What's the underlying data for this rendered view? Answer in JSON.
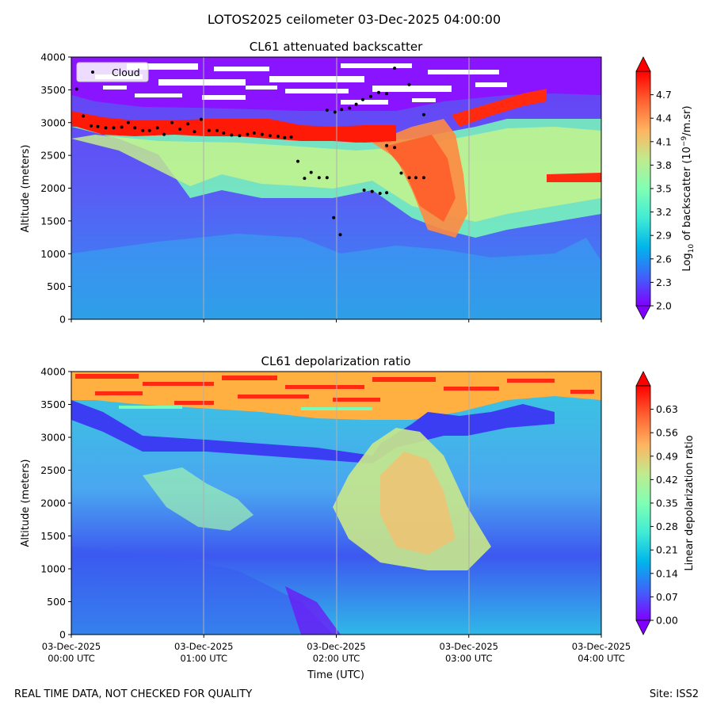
{
  "figure_title": "LOTOS2025 ceilometer 03-Dec-2025 04:00:00",
  "footer_left": "REAL TIME DATA, NOT CHECKED FOR QUALITY",
  "footer_right": "Site: ISS2",
  "chart_data": [
    {
      "type": "heatmap",
      "title": "CL61 attenuated backscatter",
      "xlabel": "",
      "ylabel": "Altitude (meters)",
      "ylim": [
        0,
        4000
      ],
      "y_ticks": [
        "0",
        "500",
        "1000",
        "1500",
        "2000",
        "2500",
        "3000",
        "3500",
        "4000"
      ],
      "x_ticks": [
        "",
        "",
        "",
        "",
        ""
      ],
      "colorbar": {
        "label": "Log10 of backscatter (10^-9/m.sr)",
        "range": [
          2.0,
          5.0
        ],
        "ticks": [
          "2.0",
          "2.3",
          "2.6",
          "2.9",
          "3.2",
          "3.5",
          "3.8",
          "4.1",
          "4.4",
          "4.7"
        ],
        "colormap": "rainbow",
        "extend": "both"
      },
      "legend": {
        "entries": [
          "Cloud"
        ],
        "placement": "upper-left"
      },
      "cloud_base_points": [
        {
          "t": 0.04,
          "alt": 3510
        },
        {
          "t": 0.09,
          "alt": 3100
        },
        {
          "t": 0.15,
          "alt": 2950
        },
        {
          "t": 0.2,
          "alt": 2940
        },
        {
          "t": 0.26,
          "alt": 2920
        },
        {
          "t": 0.32,
          "alt": 2920
        },
        {
          "t": 0.38,
          "alt": 2930
        },
        {
          "t": 0.43,
          "alt": 3000
        },
        {
          "t": 0.48,
          "alt": 2920
        },
        {
          "t": 0.54,
          "alt": 2880
        },
        {
          "t": 0.59,
          "alt": 2880
        },
        {
          "t": 0.65,
          "alt": 2920
        },
        {
          "t": 0.7,
          "alt": 2820
        },
        {
          "t": 0.76,
          "alt": 3000
        },
        {
          "t": 0.82,
          "alt": 2900
        },
        {
          "t": 0.88,
          "alt": 2980
        },
        {
          "t": 0.93,
          "alt": 2860
        },
        {
          "t": 0.98,
          "alt": 3050
        },
        {
          "t": 1.04,
          "alt": 2880
        },
        {
          "t": 1.1,
          "alt": 2880
        },
        {
          "t": 1.15,
          "alt": 2840
        },
        {
          "t": 1.21,
          "alt": 2810
        },
        {
          "t": 1.27,
          "alt": 2800
        },
        {
          "t": 1.33,
          "alt": 2820
        },
        {
          "t": 1.38,
          "alt": 2840
        },
        {
          "t": 1.44,
          "alt": 2820
        },
        {
          "t": 1.5,
          "alt": 2800
        },
        {
          "t": 1.56,
          "alt": 2790
        },
        {
          "t": 1.61,
          "alt": 2770
        },
        {
          "t": 1.66,
          "alt": 2780
        },
        {
          "t": 1.71,
          "alt": 2410
        },
        {
          "t": 1.76,
          "alt": 2150
        },
        {
          "t": 1.81,
          "alt": 2240
        },
        {
          "t": 1.87,
          "alt": 2160
        },
        {
          "t": 1.93,
          "alt": 2160
        },
        {
          "t": 1.93,
          "alt": 3190
        },
        {
          "t": 1.98,
          "alt": 1550
        },
        {
          "t": 1.99,
          "alt": 3160
        },
        {
          "t": 2.03,
          "alt": 1290
        },
        {
          "t": 2.04,
          "alt": 3200
        },
        {
          "t": 2.1,
          "alt": 3220
        },
        {
          "t": 2.15,
          "alt": 3280
        },
        {
          "t": 2.2,
          "alt": 3350
        },
        {
          "t": 2.21,
          "alt": 1970
        },
        {
          "t": 2.26,
          "alt": 3400
        },
        {
          "t": 2.27,
          "alt": 1950
        },
        {
          "t": 2.32,
          "alt": 3460
        },
        {
          "t": 2.33,
          "alt": 1920
        },
        {
          "t": 2.38,
          "alt": 3440
        },
        {
          "t": 2.38,
          "alt": 2650
        },
        {
          "t": 2.38,
          "alt": 1930
        },
        {
          "t": 2.44,
          "alt": 3830
        },
        {
          "t": 2.44,
          "alt": 2620
        },
        {
          "t": 2.49,
          "alt": 2230
        },
        {
          "t": 2.55,
          "alt": 3580
        },
        {
          "t": 2.55,
          "alt": 2160
        },
        {
          "t": 2.6,
          "alt": 2160
        },
        {
          "t": 2.66,
          "alt": 3120
        },
        {
          "t": 2.66,
          "alt": 2160
        }
      ]
    },
    {
      "type": "heatmap",
      "title": "CL61 depolarization ratio",
      "xlabel": "Time (UTC)",
      "ylabel": "Altitude (meters)",
      "ylim": [
        0,
        4000
      ],
      "y_ticks": [
        "0",
        "500",
        "1000",
        "1500",
        "2000",
        "2500",
        "3000",
        "3500",
        "4000"
      ],
      "x_ticks": [
        {
          "date": "03-Dec-2025",
          "time": "00:00 UTC"
        },
        {
          "date": "03-Dec-2025",
          "time": "01:00 UTC"
        },
        {
          "date": "03-Dec-2025",
          "time": "02:00 UTC"
        },
        {
          "date": "03-Dec-2025",
          "time": "03:00 UTC"
        },
        {
          "date": "03-Dec-2025",
          "time": "04:00 UTC"
        }
      ],
      "colorbar": {
        "label": "Linear depolarization ratio",
        "range": [
          0.0,
          0.7
        ],
        "ticks": [
          "0.00",
          "0.07",
          "0.14",
          "0.21",
          "0.28",
          "0.35",
          "0.42",
          "0.49",
          "0.56",
          "0.63"
        ],
        "colormap": "rainbow",
        "extend": "both"
      }
    }
  ]
}
